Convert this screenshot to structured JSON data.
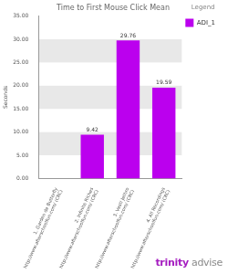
{
  "chart_data": {
    "type": "bar",
    "title": "Time to First Mouse Click Mean",
    "y_label": "Seconds",
    "categories": [
      "1. Garden de Butterfly http://www.afterschoolfun.com/ (CRC)",
      "2. Infinite Riches http://www.afterschoolfun.com/ (CRC)",
      "3. Vesti Jethro http://www.afterschoolfun.com/ (CRC)",
      "4. All Recordings http://www.afterschoolfun.com/ (CRC)"
    ],
    "series": [
      {
        "name": "ADI_1",
        "color": "#bb00ee",
        "values": [
          null,
          9.42,
          29.76,
          19.59
        ]
      }
    ],
    "ylim": [
      0,
      35
    ],
    "yticks": [
      {
        "value": 0,
        "label": "0.00"
      },
      {
        "value": 5,
        "label": "5.00"
      },
      {
        "value": 10,
        "label": "10.00"
      },
      {
        "value": 15,
        "label": "15.00"
      },
      {
        "value": 20,
        "label": "20.00"
      },
      {
        "value": 25,
        "label": "25.00"
      },
      {
        "value": 30,
        "label": "30.00"
      },
      {
        "value": 35,
        "label": "35.00"
      }
    ],
    "grid": true,
    "legend": "right",
    "legend_title": "Legend",
    "data_labels": true,
    "logo": "trinity advise"
  }
}
